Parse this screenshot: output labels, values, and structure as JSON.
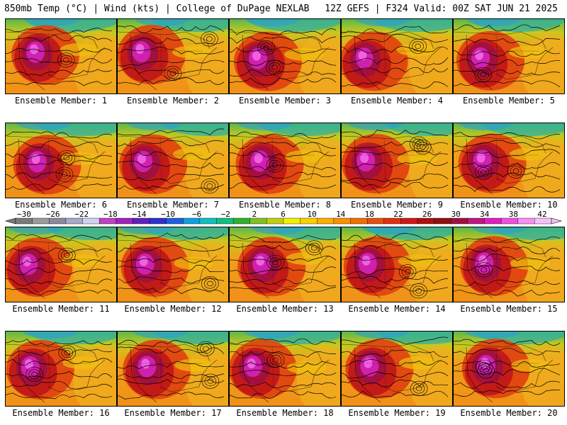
{
  "header": {
    "title_left": "850mb Temp (°C) | Wind (kts) | College of DuPage NEXLAB",
    "title_right": "12Z GEFS | F324 Valid: 00Z SAT JUN 21 2025"
  },
  "panels": [
    {
      "label": "Ensemble Member: 1"
    },
    {
      "label": "Ensemble Member: 2"
    },
    {
      "label": "Ensemble Member: 3"
    },
    {
      "label": "Ensemble Member: 4"
    },
    {
      "label": "Ensemble Member: 5"
    },
    {
      "label": "Ensemble Member: 6"
    },
    {
      "label": "Ensemble Member: 7"
    },
    {
      "label": "Ensemble Member: 8"
    },
    {
      "label": "Ensemble Member: 9"
    },
    {
      "label": "Ensemble Member: 10"
    },
    {
      "label": "Ensemble Member: 11"
    },
    {
      "label": "Ensemble Member: 12"
    },
    {
      "label": "Ensemble Member: 13"
    },
    {
      "label": "Ensemble Member: 14"
    },
    {
      "label": "Ensemble Member: 15"
    },
    {
      "label": "Ensemble Member: 16"
    },
    {
      "label": "Ensemble Member: 17"
    },
    {
      "label": "Ensemble Member: 18"
    },
    {
      "label": "Ensemble Member: 19"
    },
    {
      "label": "Ensemble Member: 20"
    }
  ],
  "colorbar": {
    "ticks": [
      "−30",
      "−26",
      "−22",
      "−18",
      "−14",
      "−10",
      "−6",
      "−2",
      "2",
      "6",
      "10",
      "14",
      "18",
      "22",
      "26",
      "30",
      "34",
      "38",
      "42"
    ],
    "colors": [
      "#7a7a7a",
      "#9a9a9a",
      "#8a8a9a",
      "#a8a8c8",
      "#d0d0f0",
      "#c040c0",
      "#a020c0",
      "#6020c0",
      "#3030d0",
      "#2060e0",
      "#10a0e0",
      "#10c0c0",
      "#10c080",
      "#30b030",
      "#80c020",
      "#c0d010",
      "#f0f000",
      "#f8d000",
      "#f8b000",
      "#f89000",
      "#f07000",
      "#e85010",
      "#e03010",
      "#d01818",
      "#b01010",
      "#901010",
      "#a01040",
      "#c01880",
      "#e020c0",
      "#f050e0",
      "#f890f0",
      "#f8c0f8"
    ]
  }
}
